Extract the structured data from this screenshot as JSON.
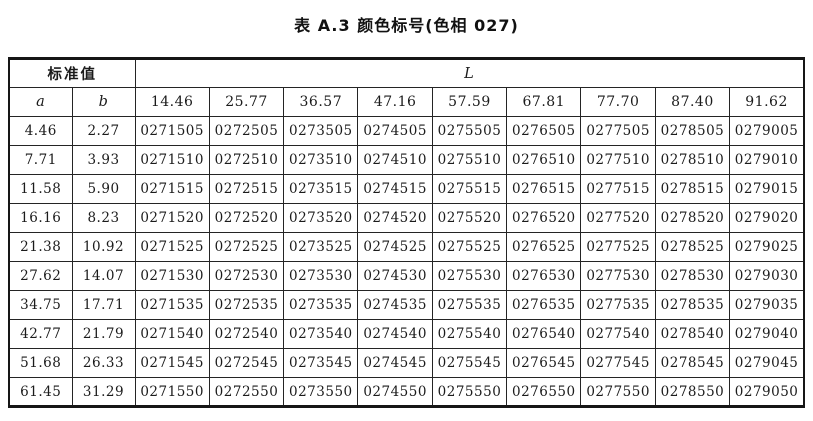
{
  "title": "表 A.3  颜色标号(色相 027)",
  "table": {
    "header": {
      "standard_value_label": "标准值",
      "l_label": "L",
      "a_label": "a",
      "b_label": "b",
      "l_values": [
        "14.46",
        "25.77",
        "36.57",
        "47.16",
        "57.59",
        "67.81",
        "77.70",
        "87.40",
        "91.62"
      ]
    },
    "rows": [
      {
        "a": "4.46",
        "b": "2.27",
        "codes": [
          "0271505",
          "0272505",
          "0273505",
          "0274505",
          "0275505",
          "0276505",
          "0277505",
          "0278505",
          "0279005"
        ]
      },
      {
        "a": "7.71",
        "b": "3.93",
        "codes": [
          "0271510",
          "0272510",
          "0273510",
          "0274510",
          "0275510",
          "0276510",
          "0277510",
          "0278510",
          "0279010"
        ]
      },
      {
        "a": "11.58",
        "b": "5.90",
        "codes": [
          "0271515",
          "0272515",
          "0273515",
          "0274515",
          "0275515",
          "0276515",
          "0277515",
          "0278515",
          "0279015"
        ]
      },
      {
        "a": "16.16",
        "b": "8.23",
        "codes": [
          "0271520",
          "0272520",
          "0273520",
          "0274520",
          "0275520",
          "0276520",
          "0277520",
          "0278520",
          "0279020"
        ]
      },
      {
        "a": "21.38",
        "b": "10.92",
        "codes": [
          "0271525",
          "0272525",
          "0273525",
          "0274525",
          "0275525",
          "0276525",
          "0277525",
          "0278525",
          "0279025"
        ]
      },
      {
        "a": "27.62",
        "b": "14.07",
        "codes": [
          "0271530",
          "0272530",
          "0273530",
          "0274530",
          "0275530",
          "0276530",
          "0277530",
          "0278530",
          "0279030"
        ]
      },
      {
        "a": "34.75",
        "b": "17.71",
        "codes": [
          "0271535",
          "0272535",
          "0273535",
          "0274535",
          "0275535",
          "0276535",
          "0277535",
          "0278535",
          "0279035"
        ]
      },
      {
        "a": "42.77",
        "b": "21.79",
        "codes": [
          "0271540",
          "0272540",
          "0273540",
          "0274540",
          "0275540",
          "0276540",
          "0277540",
          "0278540",
          "0279040"
        ]
      },
      {
        "a": "51.68",
        "b": "26.33",
        "codes": [
          "0271545",
          "0272545",
          "0273545",
          "0274545",
          "0275545",
          "0276545",
          "0277545",
          "0278545",
          "0279045"
        ]
      },
      {
        "a": "61.45",
        "b": "31.29",
        "codes": [
          "0271550",
          "0272550",
          "0273550",
          "0274550",
          "0275550",
          "0276550",
          "0277550",
          "0278550",
          "0279050"
        ]
      }
    ]
  }
}
